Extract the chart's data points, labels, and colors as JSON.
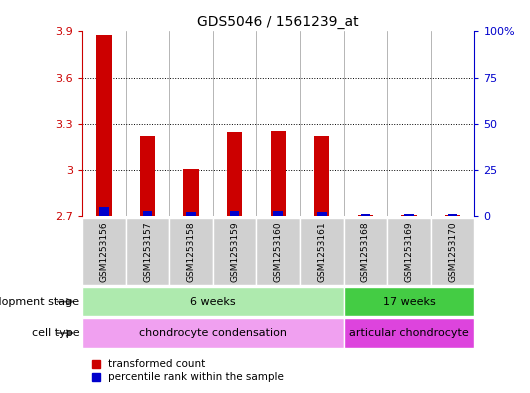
{
  "title": "GDS5046 / 1561239_at",
  "samples": [
    "GSM1253156",
    "GSM1253157",
    "GSM1253158",
    "GSM1253159",
    "GSM1253160",
    "GSM1253161",
    "GSM1253168",
    "GSM1253169",
    "GSM1253170"
  ],
  "red_values": [
    3.875,
    3.22,
    3.005,
    3.245,
    3.25,
    3.22,
    2.705,
    2.705,
    2.705
  ],
  "blue_values": [
    2.76,
    2.735,
    2.725,
    2.735,
    2.735,
    2.73,
    2.715,
    2.715,
    2.715
  ],
  "base_value": 2.7,
  "ylim_left": [
    2.7,
    3.9
  ],
  "yticks_left": [
    2.7,
    3.0,
    3.3,
    3.6,
    3.9
  ],
  "ytick_labels_left": [
    "2.7",
    "3",
    "3.3",
    "3.6",
    "3.9"
  ],
  "ylim_right": [
    0,
    100
  ],
  "yticks_right": [
    0,
    25,
    50,
    75,
    100
  ],
  "ytick_labels_right": [
    "0",
    "25",
    "50",
    "75",
    "100%"
  ],
  "gridlines": [
    3.0,
    3.3,
    3.6
  ],
  "development_stage_groups": [
    {
      "label": "6 weeks",
      "start": 0,
      "end": 6,
      "color": "#aeeaae"
    },
    {
      "label": "17 weeks",
      "start": 6,
      "end": 9,
      "color": "#44cc44"
    }
  ],
  "cell_type_groups": [
    {
      "label": "chondrocyte condensation",
      "start": 0,
      "end": 6,
      "color": "#f0a0f0"
    },
    {
      "label": "articular chondrocyte",
      "start": 6,
      "end": 9,
      "color": "#dd44dd"
    }
  ],
  "legend_red": "transformed count",
  "legend_blue": "percentile rank within the sample",
  "dev_stage_label": "development stage",
  "cell_type_label": "cell type",
  "bar_color_red": "#cc0000",
  "bar_color_blue": "#0000cc",
  "bar_width": 0.35,
  "blue_bar_width": 0.22,
  "sample_bg_color": "#d0d0d0",
  "axis_left_color": "#cc0000",
  "axis_right_color": "#0000cc"
}
